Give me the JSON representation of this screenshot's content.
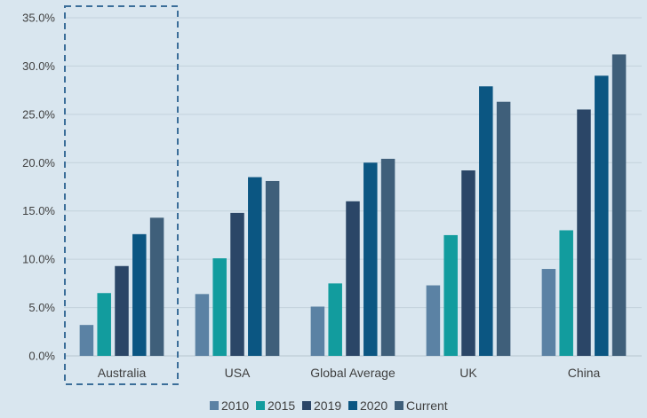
{
  "colors": {
    "background": "#d9e6ef",
    "grid": "#c3d2dc",
    "highlight": "#3b6e99"
  },
  "chart_data": {
    "type": "bar",
    "categories": [
      "Australia",
      "USA",
      "Global Average",
      "UK",
      "China"
    ],
    "series": [
      {
        "name": "2010",
        "color": "#5b82a4",
        "values": [
          3.2,
          6.4,
          5.1,
          7.3,
          9.0
        ]
      },
      {
        "name": "2015",
        "color": "#129c9e",
        "values": [
          6.5,
          10.1,
          7.5,
          12.5,
          13.0
        ]
      },
      {
        "name": "2019",
        "color": "#2b4667",
        "values": [
          9.3,
          14.8,
          16.0,
          19.2,
          25.5
        ]
      },
      {
        "name": "2020",
        "color": "#0b5682",
        "values": [
          12.6,
          18.5,
          20.0,
          27.9,
          29.0
        ]
      },
      {
        "name": "Current",
        "color": "#3f5f7a",
        "values": [
          14.3,
          18.1,
          20.4,
          26.3,
          31.2
        ]
      }
    ],
    "y_ticks": [
      "0.0%",
      "5.0%",
      "10.0%",
      "15.0%",
      "20.0%",
      "25.0%",
      "30.0%",
      "35.0%"
    ],
    "ylim": [
      0,
      35
    ],
    "grid": true,
    "legend": "bottom-center",
    "highlighted_category": "Australia"
  }
}
